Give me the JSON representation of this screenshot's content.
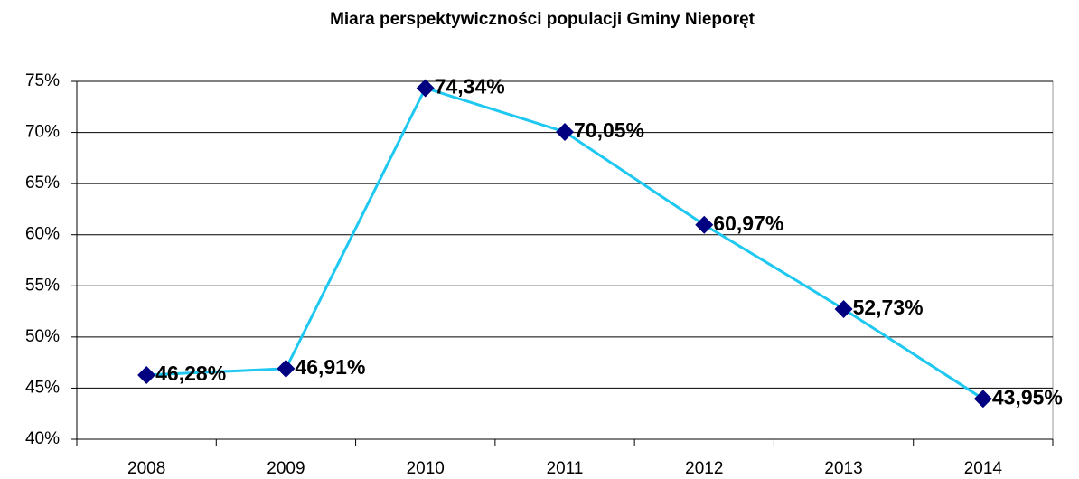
{
  "chart_data": {
    "type": "line",
    "title": "Miara perspektywiczności populacji Gminy Nieporęt",
    "categories": [
      "2008",
      "2009",
      "2010",
      "2011",
      "2012",
      "2013",
      "2014"
    ],
    "series": [
      {
        "name": "Miara perspektywiczności",
        "color": "#1ec8f0",
        "marker_color": "#000080",
        "values": [
          46.28,
          46.91,
          74.34,
          70.05,
          60.97,
          52.73,
          43.95
        ],
        "value_labels": [
          "46,28%",
          "46,91%",
          "74,34%",
          "70,05%",
          "60,97%",
          "52,73%",
          "43,95%"
        ]
      }
    ],
    "ylim": [
      40,
      75
    ],
    "yticks": [
      {
        "value": 40,
        "label": "40%"
      },
      {
        "value": 45,
        "label": "45%"
      },
      {
        "value": 50,
        "label": "50%"
      },
      {
        "value": 55,
        "label": "55%"
      },
      {
        "value": 60,
        "label": "60%"
      },
      {
        "value": 65,
        "label": "65%"
      },
      {
        "value": 70,
        "label": "70%"
      },
      {
        "value": 75,
        "label": "75%"
      }
    ],
    "grid": true
  }
}
